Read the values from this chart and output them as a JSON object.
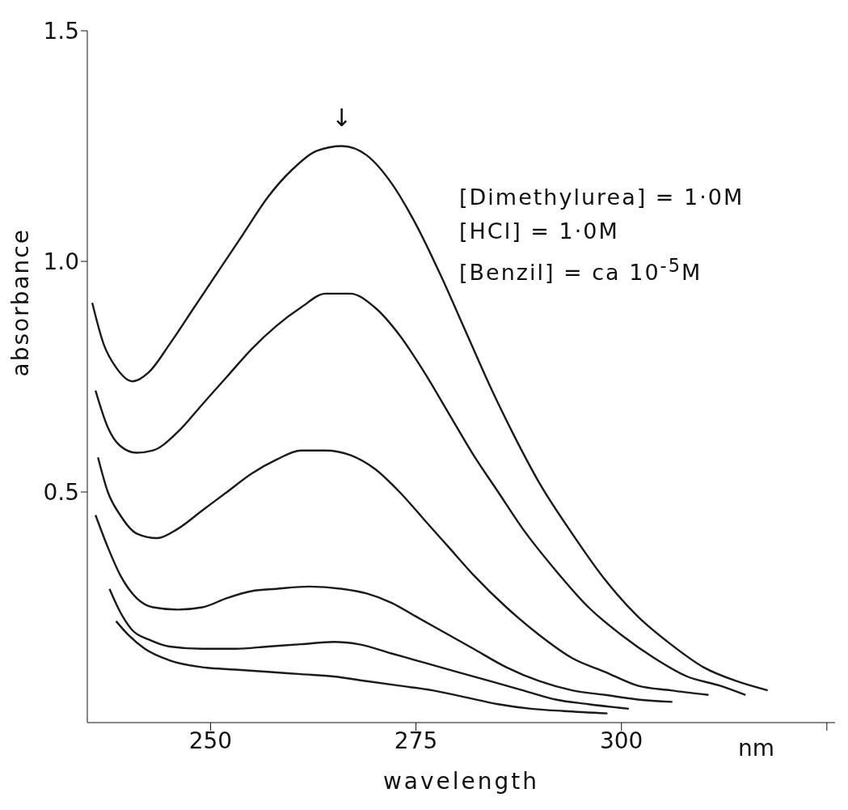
{
  "chart_data": {
    "type": "line",
    "xlabel": "wavelength",
    "ylabel": "absorbance",
    "xlim": [
      235,
      326
    ],
    "xticks": [
      250,
      275,
      300,
      {
        "value": 325,
        "label": null
      }
    ],
    "ylim": [
      0,
      1.5
    ],
    "yticks": [
      0.5,
      {
        "value": 1,
        "label": "1.0"
      },
      1.5
    ],
    "grid": false,
    "marker": "none",
    "line_style": "solid",
    "annotations": [
      "nm",
      "[Dimethylurea] = 1·0M",
      "[HCl] = 1·0M",
      "[Benzil] = ca 10$^{-5}$M",
      "↓"
    ],
    "series": [
      {
        "color": "#1a1a1a",
        "x": [
          235.6,
          237,
          238.5,
          240.5,
          242.5,
          245,
          248,
          251,
          254,
          257,
          260,
          263,
          266,
          269,
          272,
          275,
          278,
          281,
          284,
          287,
          290,
          294,
          298,
          302,
          306,
          310,
          314,
          317.8
        ],
        "values": [
          0.91,
          0.82,
          0.77,
          0.74,
          0.76,
          0.82,
          0.9,
          0.98,
          1.06,
          1.14,
          1.2,
          1.24,
          1.25,
          1.23,
          1.17,
          1.08,
          0.97,
          0.85,
          0.73,
          0.62,
          0.52,
          0.41,
          0.31,
          0.23,
          0.17,
          0.12,
          0.09,
          0.07
        ]
      },
      {
        "color": "#1a1a1a",
        "x": [
          236,
          237.5,
          239,
          241,
          243,
          246,
          249,
          252,
          255,
          258,
          261,
          264,
          267,
          270,
          273,
          276,
          279,
          282,
          285,
          288,
          292,
          296,
          300,
          304,
          308,
          312,
          315.1
        ],
        "values": [
          0.72,
          0.64,
          0.6,
          0.585,
          0.59,
          0.63,
          0.69,
          0.75,
          0.81,
          0.86,
          0.9,
          0.93,
          0.93,
          0.9,
          0.84,
          0.76,
          0.67,
          0.58,
          0.5,
          0.42,
          0.33,
          0.25,
          0.19,
          0.14,
          0.1,
          0.08,
          0.06
        ]
      },
      {
        "color": "#1a1a1a",
        "x": [
          236.3,
          237.5,
          239,
          241,
          243.5,
          246,
          249,
          252,
          255,
          258,
          261,
          264,
          267,
          270,
          273,
          276,
          279,
          282,
          286,
          290,
          294,
          298,
          302,
          306,
          310.6
        ],
        "values": [
          0.575,
          0.5,
          0.45,
          0.41,
          0.4,
          0.42,
          0.46,
          0.5,
          0.54,
          0.57,
          0.59,
          0.59,
          0.58,
          0.55,
          0.5,
          0.44,
          0.38,
          0.32,
          0.25,
          0.19,
          0.14,
          0.11,
          0.08,
          0.07,
          0.06
        ]
      },
      {
        "color": "#1a1a1a",
        "x": [
          236,
          237.5,
          239,
          241,
          243,
          246,
          249,
          252,
          255,
          258,
          262,
          266,
          269,
          272,
          275,
          278,
          282,
          286,
          290,
          294,
          298,
          302,
          306.2
        ],
        "values": [
          0.45,
          0.38,
          0.32,
          0.27,
          0.25,
          0.245,
          0.25,
          0.27,
          0.285,
          0.29,
          0.295,
          0.29,
          0.28,
          0.26,
          0.23,
          0.2,
          0.16,
          0.12,
          0.09,
          0.07,
          0.06,
          0.05,
          0.045
        ]
      },
      {
        "color": "#1a1a1a",
        "x": [
          237.7,
          239,
          240.5,
          242.5,
          245,
          249,
          253,
          257,
          261,
          265,
          268,
          272,
          276,
          280,
          284,
          288,
          292,
          296,
          300.9
        ],
        "values": [
          0.29,
          0.24,
          0.2,
          0.18,
          0.165,
          0.16,
          0.16,
          0.165,
          0.17,
          0.175,
          0.17,
          0.15,
          0.13,
          0.11,
          0.09,
          0.07,
          0.05,
          0.04,
          0.03
        ]
      },
      {
        "color": "#1a1a1a",
        "x": [
          238.5,
          240,
          242,
          245,
          249,
          253,
          257,
          261,
          265,
          269,
          273,
          277,
          281,
          285,
          289,
          293,
          298.3
        ],
        "values": [
          0.22,
          0.19,
          0.16,
          0.135,
          0.12,
          0.115,
          0.11,
          0.105,
          0.1,
          0.09,
          0.08,
          0.07,
          0.055,
          0.04,
          0.03,
          0.025,
          0.02
        ]
      }
    ]
  }
}
